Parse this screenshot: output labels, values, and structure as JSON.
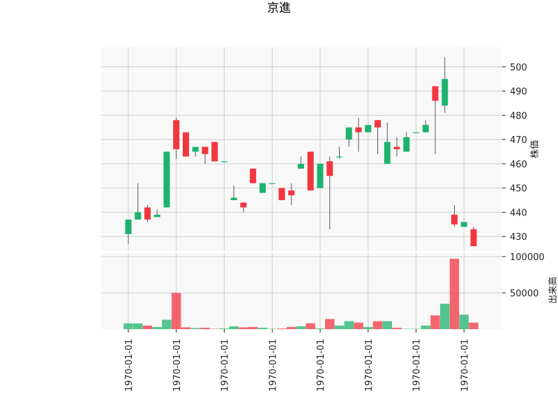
{
  "chart_data": {
    "type": "candlestick",
    "title": "京進",
    "price_ylabel": "株価",
    "volume_ylabel": "出来高",
    "up_color": "#1db36f",
    "down_color": "#f2363f",
    "grid": true,
    "price_yticks": [
      430,
      440,
      450,
      460,
      470,
      480,
      490,
      500
    ],
    "volume_yticks": [
      50000,
      100000
    ],
    "price_ylim": [
      424,
      508
    ],
    "volume_ylim": [
      0,
      100000
    ],
    "xtick_labels": [
      "1970-01-01",
      "1970-01-01",
      "1970-01-01",
      "1970-01-01",
      "1970-01-01",
      "1970-01-01",
      "1970-01-01",
      "1970-01-01"
    ],
    "candles": [
      {
        "open": 431,
        "high": 437,
        "low": 427,
        "close": 437,
        "volume": 8000
      },
      {
        "open": 437,
        "high": 452,
        "low": 437,
        "close": 440,
        "volume": 8000
      },
      {
        "open": 442,
        "high": 443,
        "low": 436,
        "close": 437,
        "volume": 5000
      },
      {
        "open": 438,
        "high": 441,
        "low": 438,
        "close": 439,
        "volume": 3000
      },
      {
        "open": 442,
        "high": 465,
        "low": 442,
        "close": 465,
        "volume": 13000
      },
      {
        "open": 478,
        "high": 479,
        "low": 462,
        "close": 466,
        "volume": 50000
      },
      {
        "open": 473,
        "high": 473,
        "low": 463,
        "close": 463,
        "volume": 2500
      },
      {
        "open": 465,
        "high": 467,
        "low": 463,
        "close": 467,
        "volume": 1500
      },
      {
        "open": 467,
        "high": 467,
        "low": 460,
        "close": 464,
        "volume": 2000
      },
      {
        "open": 469,
        "high": 469,
        "low": 461,
        "close": 461,
        "volume": 500
      },
      {
        "open": 461,
        "high": 461,
        "low": 461,
        "close": 461,
        "volume": 1000
      },
      {
        "open": 445,
        "high": 451,
        "low": 445,
        "close": 446,
        "volume": 4000
      },
      {
        "open": 444,
        "high": 444,
        "low": 440,
        "close": 442,
        "volume": 2500
      },
      {
        "open": 458,
        "high": 458,
        "low": 452,
        "close": 452,
        "volume": 3000
      },
      {
        "open": 448,
        "high": 452,
        "low": 448,
        "close": 452,
        "volume": 2000
      },
      {
        "open": 452,
        "high": 452,
        "low": 452,
        "close": 452,
        "volume": 500
      },
      {
        "open": 450,
        "high": 450,
        "low": 445,
        "close": 445,
        "volume": 1000
      },
      {
        "open": 449,
        "high": 452,
        "low": 443,
        "close": 447,
        "volume": 3000
      },
      {
        "open": 458,
        "high": 463,
        "low": 458,
        "close": 460,
        "volume": 4000
      },
      {
        "open": 465,
        "high": 465,
        "low": 449,
        "close": 449,
        "volume": 8000
      },
      {
        "open": 450,
        "high": 460,
        "low": 450,
        "close": 460,
        "volume": 1000
      },
      {
        "open": 461,
        "high": 463,
        "low": 433,
        "close": 455,
        "volume": 14000
      },
      {
        "open": 463,
        "high": 467,
        "low": 462,
        "close": 463,
        "volume": 5000
      },
      {
        "open": 470,
        "high": 475,
        "low": 467,
        "close": 475,
        "volume": 11000
      },
      {
        "open": 475,
        "high": 479,
        "low": 465,
        "close": 473,
        "volume": 9000
      },
      {
        "open": 473,
        "high": 476,
        "low": 473,
        "close": 476,
        "volume": 3000
      },
      {
        "open": 478,
        "high": 478,
        "low": 464,
        "close": 475,
        "volume": 11000
      },
      {
        "open": 460,
        "high": 477,
        "low": 460,
        "close": 469,
        "volume": 11000
      },
      {
        "open": 467,
        "high": 471,
        "low": 463,
        "close": 466,
        "volume": 2000
      },
      {
        "open": 465,
        "high": 473,
        "low": 465,
        "close": 471,
        "volume": 500
      },
      {
        "open": 473,
        "high": 473,
        "low": 473,
        "close": 473,
        "volume": 500
      },
      {
        "open": 473,
        "high": 478,
        "low": 473,
        "close": 476,
        "volume": 5000
      },
      {
        "open": 492,
        "high": 492,
        "low": 464,
        "close": 486,
        "volume": 19000
      },
      {
        "open": 484,
        "high": 504,
        "low": 481,
        "close": 495,
        "volume": 35000
      },
      {
        "open": 439,
        "high": 443,
        "low": 434,
        "close": 435,
        "volume": 97000
      },
      {
        "open": 434,
        "high": 436,
        "low": 434,
        "close": 436,
        "volume": 20000
      },
      {
        "open": 433,
        "high": 434,
        "low": 426,
        "close": 426,
        "volume": 9000
      }
    ]
  }
}
